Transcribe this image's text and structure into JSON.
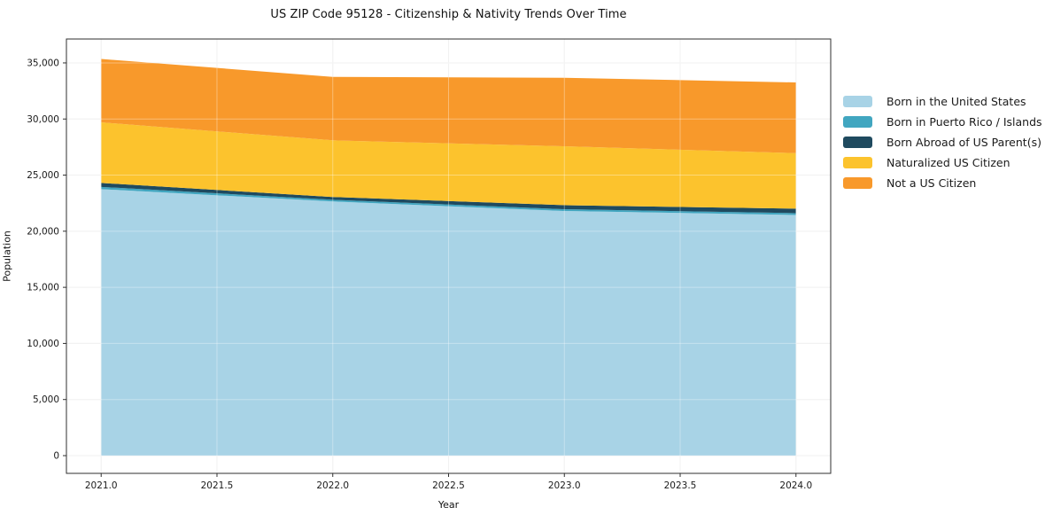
{
  "figure": {
    "title": "US ZIP Code 95128 - Citizenship & Nativity Trends Over Time"
  },
  "chart_data": {
    "type": "area",
    "stacked": true,
    "title": "US ZIP Code 95128 - Citizenship & Nativity Trends Over Time",
    "xlabel": "Year",
    "ylabel": "Population",
    "x": [
      2021,
      2022,
      2023,
      2024
    ],
    "series": [
      {
        "name": "Born in the United States",
        "color": "#a8d3e6",
        "values": [
          23750,
          22650,
          21800,
          21450
        ]
      },
      {
        "name": "Born in Puerto Rico / Islands",
        "color": "#41a6c0",
        "values": [
          200,
          150,
          160,
          160
        ]
      },
      {
        "name": "Born Abroad of US Parent(s)",
        "color": "#1f4a5f",
        "values": [
          350,
          250,
          360,
          400
        ]
      },
      {
        "name": "Naturalized US Citizen",
        "color": "#fcc32d",
        "values": [
          5400,
          5050,
          5250,
          4950
        ]
      },
      {
        "name": "Not a US Citizen",
        "color": "#f8992b",
        "values": [
          5650,
          5650,
          6100,
          6300
        ]
      }
    ],
    "stack_totals": [
      35350,
      33750,
      33670,
      33260
    ],
    "x_tick_labels": [
      "2021.0",
      "2021.5",
      "2022.0",
      "2022.5",
      "2023.0",
      "2023.5",
      "2024.0"
    ],
    "x_tick_values": [
      2021,
      2021.5,
      2022,
      2022.5,
      2023,
      2023.5,
      2024
    ],
    "y_tick_labels": [
      "0",
      "5,000",
      "10,000",
      "15,000",
      "20,000",
      "25,000",
      "30,000",
      "35,000"
    ],
    "y_tick_values": [
      0,
      5000,
      10000,
      15000,
      20000,
      25000,
      30000,
      35000
    ],
    "xlim": [
      2020.85,
      2024.15
    ],
    "ylim": [
      -1580,
      37130
    ],
    "grid": true,
    "grid_color": "#eaeaea",
    "spine_color": "#2f2f2f",
    "tick_text_color": "#1a1a1a",
    "legend_position": "outside-right"
  }
}
